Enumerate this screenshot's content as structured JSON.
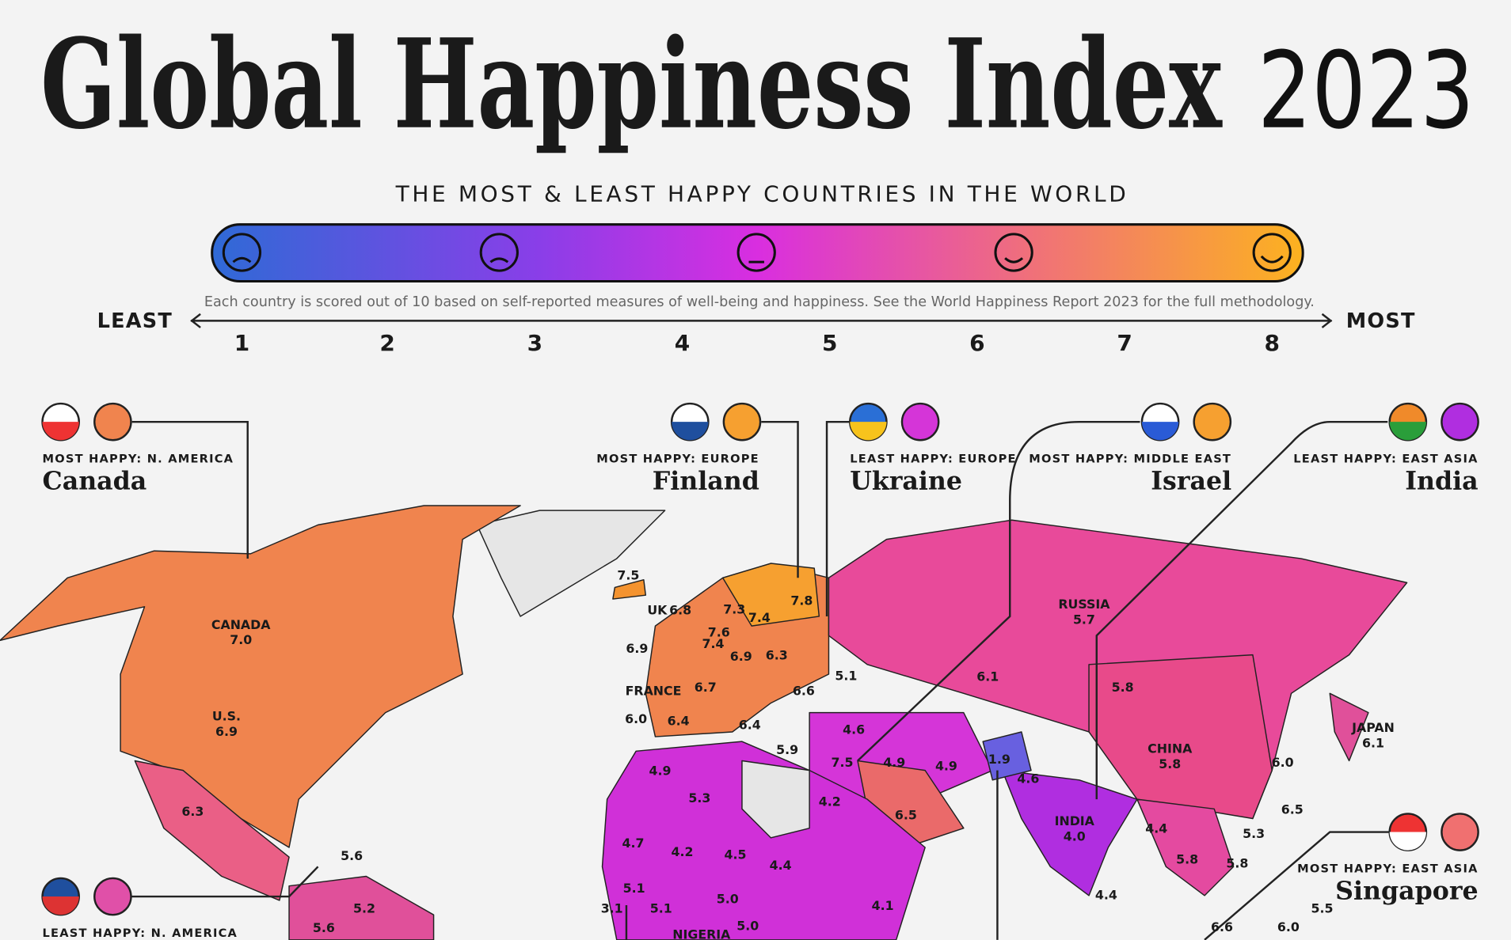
{
  "header": {
    "title": "Global Happiness Index",
    "year": "2023",
    "subtitle": "THE MOST & LEAST HAPPY COUNTRIES IN THE WORLD"
  },
  "scale": {
    "note": "Each country is scored out of 10 based on self-reported measures of well-being and happiness. See the World Happiness Report 2023 for the full methodology.",
    "least": "LEAST",
    "most": "MOST",
    "ticks": [
      1,
      2,
      3,
      4,
      5,
      6,
      7,
      8
    ]
  },
  "callouts": [
    {
      "caption": "MOST HAPPY: N. AMERICA",
      "country": "Canada"
    },
    {
      "caption": "MOST HAPPY: EUROPE",
      "country": "Finland"
    },
    {
      "caption": "LEAST HAPPY: EUROPE",
      "country": "Ukraine"
    },
    {
      "caption": "MOST HAPPY: MIDDLE EAST",
      "country": "Israel"
    },
    {
      "caption": "LEAST HAPPY: EAST ASIA",
      "country": "India"
    },
    {
      "caption": "MOST HAPPY: EAST ASIA",
      "country": "Singapore"
    },
    {
      "caption": "LEAST HAPPY: N. AMERICA"
    }
  ],
  "labels": [
    {
      "name": "CANADA",
      "value": "7.0"
    },
    {
      "name": "U.S.",
      "value": "6.9"
    },
    {
      "value": "6.3"
    },
    {
      "value": "5.6"
    },
    {
      "value": "5.2"
    },
    {
      "value": "5.6"
    },
    {
      "value": "7.5"
    },
    {
      "name": "UK",
      "value": "6.8"
    },
    {
      "value": "6.9"
    },
    {
      "value": "7.6"
    },
    {
      "value": "7.4"
    },
    {
      "value": "7.3"
    },
    {
      "value": "7.4"
    },
    {
      "value": "7.8"
    },
    {
      "value": "6.9"
    },
    {
      "value": "6.3"
    },
    {
      "name": "FRANCE"
    },
    {
      "value": "6.7"
    },
    {
      "value": "6.0"
    },
    {
      "value": "6.4"
    },
    {
      "value": "6.4"
    },
    {
      "value": "6.6"
    },
    {
      "value": "5.1"
    },
    {
      "value": "4.6"
    },
    {
      "value": "5.9"
    },
    {
      "value": "7.5"
    },
    {
      "value": "4.9"
    },
    {
      "value": "4.9"
    },
    {
      "value": "1.9"
    },
    {
      "value": "4.6"
    },
    {
      "value": "6.1"
    },
    {
      "name": "RUSSIA",
      "value": "5.7"
    },
    {
      "value": "5.8"
    },
    {
      "name": "CHINA",
      "value": "5.8"
    },
    {
      "name": "JAPAN",
      "value": "6.1"
    },
    {
      "value": "6.0"
    },
    {
      "value": "6.5"
    },
    {
      "value": "5.3"
    },
    {
      "value": "5.8"
    },
    {
      "name": "INDIA",
      "value": "4.0"
    },
    {
      "value": "4.4"
    },
    {
      "value": "5.8"
    },
    {
      "value": "4.4"
    },
    {
      "value": "5.5"
    },
    {
      "value": "6.6"
    },
    {
      "value": "6.0"
    },
    {
      "value": "4.9"
    },
    {
      "value": "5.3"
    },
    {
      "value": "4.2"
    },
    {
      "value": "6.5"
    },
    {
      "value": "4.7"
    },
    {
      "value": "4.2"
    },
    {
      "value": "4.5"
    },
    {
      "value": "4.4"
    },
    {
      "value": "5.1"
    },
    {
      "value": "3.1"
    },
    {
      "value": "5.1"
    },
    {
      "value": "5.0"
    },
    {
      "value": "4.1"
    },
    {
      "name": "NIGERIA"
    },
    {
      "value": "5.0"
    }
  ]
}
